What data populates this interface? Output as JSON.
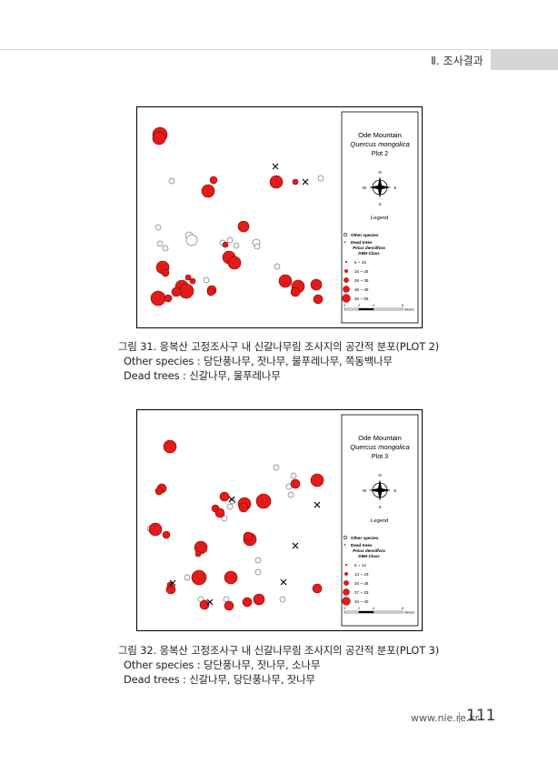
{
  "header": {
    "section": "Ⅱ. 조사결과"
  },
  "figures": [
    {
      "map": {
        "title": "Ode Mountain",
        "species": "Quercus mongolica",
        "plot": "Plot 2",
        "legend_title": "Legend",
        "legend_other": "Other species",
        "legend_dead": "Dead trees",
        "legend_class_title1": "Pinus densiflora",
        "legend_class_title2": "DBH Class",
        "classes": [
          "6 ~ 15",
          "16 ~ 25",
          "26 ~ 35",
          "36 ~ 45",
          "46 ~ 55"
        ],
        "scale_ticks": [
          "0",
          "2",
          "4",
          "8"
        ],
        "scale_unit": "Meters",
        "compass_letters": [
          "N",
          "W",
          "E",
          "S"
        ]
      },
      "caption": "그림 31. 응복산 고정조사구 내 신갈나무림 조사지의 공간적 분포(PLOT 2)",
      "other_species": "Other species : 당단풍나무, 잣나무, 물푸레나무, 쪽동백나무",
      "dead_trees": "Dead trees : 신갈나무, 물푸레나무"
    },
    {
      "map": {
        "title": "Ode Mountain",
        "species": "Quercus mongolica",
        "plot": "Plot 3",
        "legend_title": "Legend",
        "legend_other": "Other species",
        "legend_dead": "Dead trees",
        "legend_class_title1": "Pinus densiflora",
        "legend_class_title2": "DBH Class",
        "classes": [
          "6 ~ 12",
          "13 ~ 19",
          "20 ~ 26",
          "27 ~ 33",
          "34 ~ 40"
        ],
        "scale_ticks": [
          "0",
          "2",
          "4",
          "8"
        ],
        "scale_unit": "Meters",
        "compass_letters": [
          "N",
          "W",
          "E",
          "S"
        ]
      },
      "caption": "그림 32. 응복산 고정조사구 내 신갈나무림 조사지의 공간적 분포(PLOT 3)",
      "other_species": "Other species : 당단풍나무, 잣나무, 소나무",
      "dead_trees": "Dead trees : 신갈나무, 당단풍나무, 잣나무"
    }
  ],
  "footer": {
    "url": "www.nie.re.kr",
    "page": "111"
  },
  "colors": {
    "tree_fill": "#e21b1b",
    "tree_stroke": "#8a0000"
  }
}
